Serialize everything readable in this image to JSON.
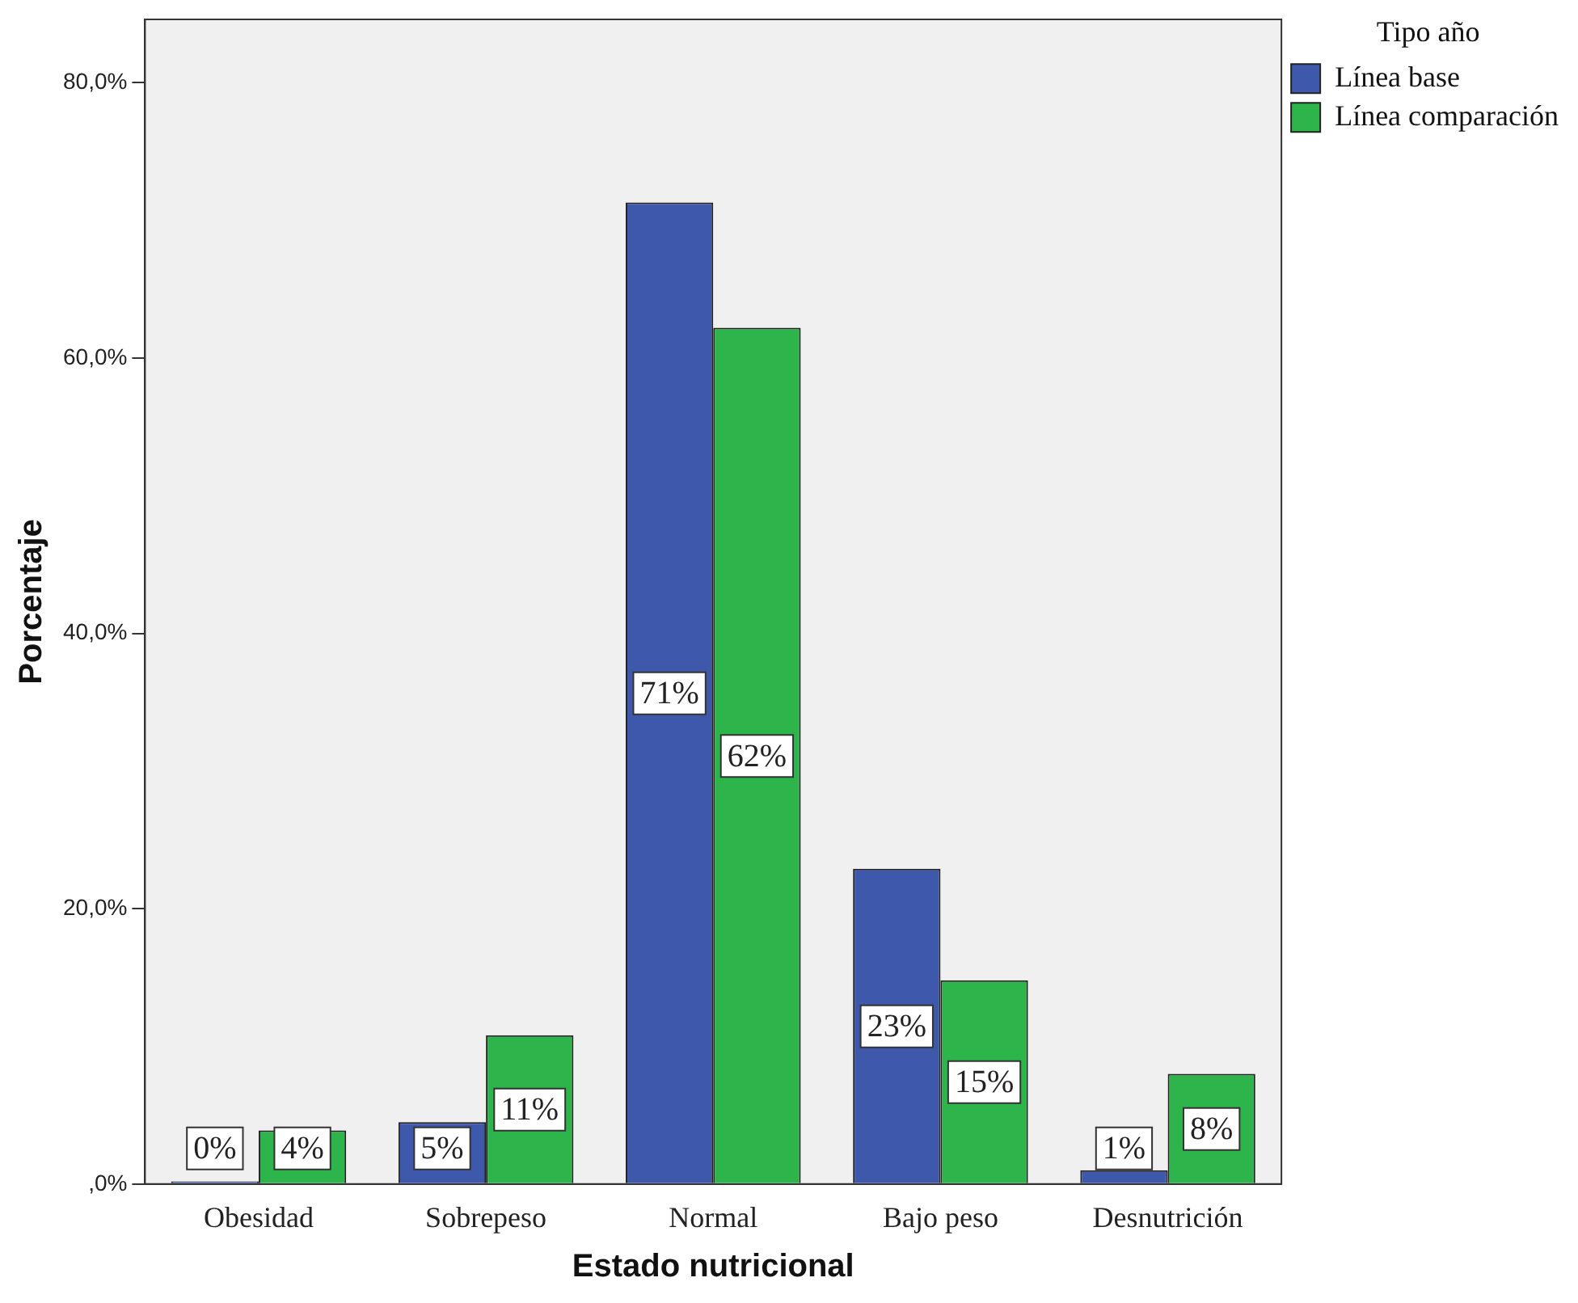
{
  "chart_data": {
    "type": "bar",
    "xlabel": "Estado nutricional",
    "ylabel": "Porcentaje",
    "legend_title": "Tipo año",
    "legend": "top right",
    "grid": false,
    "categories": [
      "Obesidad",
      "Sobrepeso",
      "Normal",
      "Bajo peso",
      "Desnutrición"
    ],
    "ylim": [
      0,
      84.6
    ],
    "yticks": [
      {
        "value": 0,
        "label": ",0%"
      },
      {
        "value": 20,
        "label": "20,0%"
      },
      {
        "value": 40,
        "label": "40,0%"
      },
      {
        "value": 60,
        "label": "60,0%"
      },
      {
        "value": 80,
        "label": "80,0%"
      }
    ],
    "series": [
      {
        "name": "Línea base",
        "color": "#3e58ac",
        "values": [
          0.2,
          4.5,
          71.3,
          22.9,
          1.0
        ],
        "value_labels": [
          "0%",
          "5%",
          "71%",
          "23%",
          "1%"
        ]
      },
      {
        "name": "Línea comparación",
        "color": "#2db54b",
        "values": [
          3.9,
          10.8,
          62.2,
          14.8,
          8.0
        ],
        "value_labels": [
          "4%",
          "11%",
          "62%",
          "15%",
          "8%"
        ]
      }
    ]
  }
}
